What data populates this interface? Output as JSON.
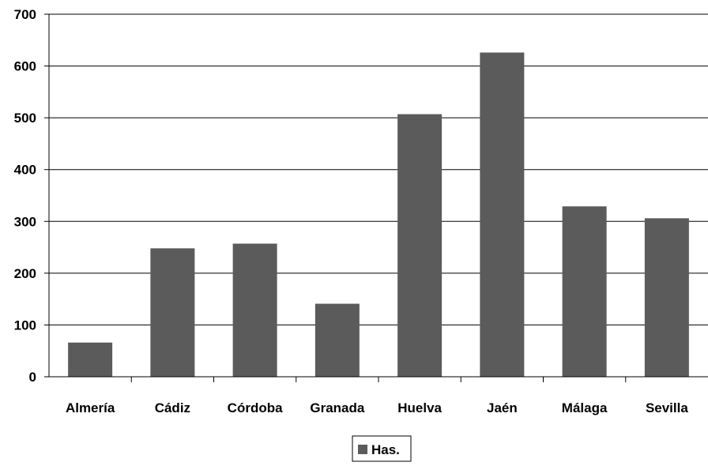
{
  "chart_data": {
    "type": "bar",
    "title": "",
    "xlabel": "",
    "ylabel": "",
    "categories": [
      "Almería",
      "Cádiz",
      "Córdoba",
      "Granada",
      "Huelva",
      "Jaén",
      "Málaga",
      "Sevilla"
    ],
    "series": [
      {
        "name": "Has.",
        "values": [
          66,
          248,
          257,
          141,
          507,
          626,
          329,
          306
        ],
        "color": "#5b5b5b"
      }
    ],
    "ylim": [
      0,
      700
    ],
    "yticks": [
      0,
      100,
      200,
      300,
      400,
      500,
      600,
      700
    ],
    "grid": true,
    "legend_position": "bottom-center"
  }
}
